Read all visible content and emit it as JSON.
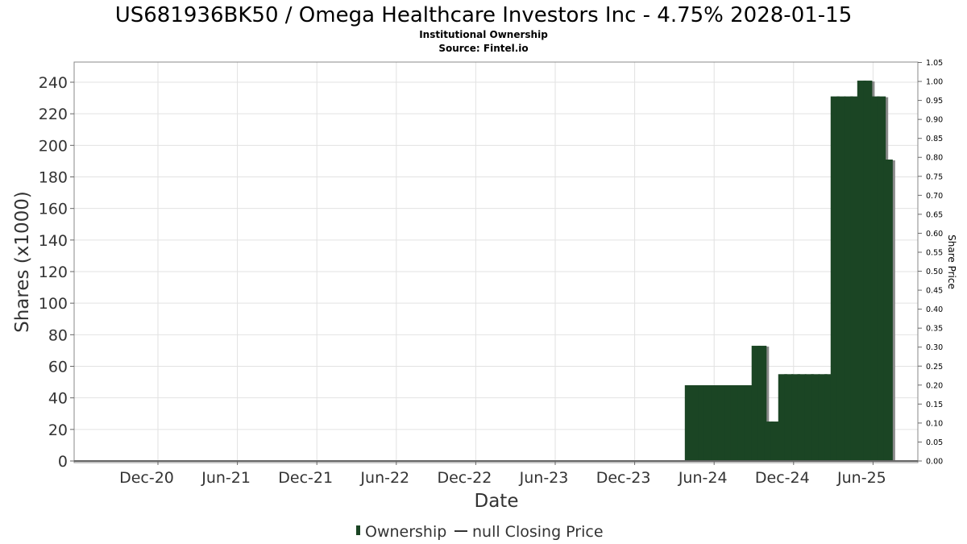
{
  "chart_data": {
    "type": "bar",
    "title": "US681936BK50 / Omega Healthcare Investors Inc - 4.75% 2028-01-15",
    "subtitle": "Institutional Ownership",
    "source": "Source: Fintel.io",
    "xlabel": "Date",
    "ylabel": "Shares (x1000)",
    "y2label": "Share Price",
    "ylim": [
      0,
      252
    ],
    "y_ticks": [
      0,
      20,
      40,
      60,
      80,
      100,
      120,
      140,
      160,
      180,
      200,
      220,
      240
    ],
    "y2lim": [
      0,
      1.05
    ],
    "y2_ticks": [
      "0.00",
      "0.05",
      "0.10",
      "0.15",
      "0.20",
      "0.25",
      "0.30",
      "0.35",
      "0.40",
      "0.45",
      "0.50",
      "0.55",
      "0.60",
      "0.65",
      "0.70",
      "0.75",
      "0.80",
      "0.85",
      "0.90",
      "0.95",
      "1.00",
      "1.05"
    ],
    "x_ticks": [
      "Dec-20",
      "Jun-21",
      "Dec-21",
      "Jun-22",
      "Dec-22",
      "Jun-23",
      "Dec-23",
      "Jun-24",
      "Dec-24",
      "Jun-25"
    ],
    "grid": true,
    "legend_position": "bottom",
    "series": [
      {
        "name": "Ownership",
        "color": "#1b4524",
        "x": [
          "2024-04-01",
          "2024-04-15",
          "2024-05-01",
          "2024-05-15",
          "2024-06-01",
          "2024-06-15",
          "2024-07-01",
          "2024-07-15",
          "2024-08-01",
          "2024-08-15",
          "2024-09-01",
          "2024-09-15",
          "2024-10-01",
          "2024-10-15",
          "2024-11-01",
          "2024-11-15",
          "2024-12-01",
          "2024-12-15",
          "2025-01-01",
          "2025-01-15",
          "2025-02-01",
          "2025-02-15",
          "2025-03-01",
          "2025-03-15",
          "2025-04-01",
          "2025-04-15",
          "2025-05-01",
          "2025-05-15",
          "2025-06-01",
          "2025-06-15",
          "2025-07-01"
        ],
        "values": [
          48,
          48,
          48,
          48,
          48,
          48,
          48,
          48,
          48,
          48,
          73,
          73,
          25,
          25,
          55,
          55,
          55,
          55,
          55,
          55,
          55,
          55,
          231,
          231,
          231,
          231,
          241,
          241,
          231,
          231,
          191
        ]
      },
      {
        "name": "null Closing Price",
        "color": "#000000",
        "values": []
      }
    ]
  },
  "legend": {
    "ownership_label": "Ownership",
    "price_label": "null Closing Price"
  }
}
